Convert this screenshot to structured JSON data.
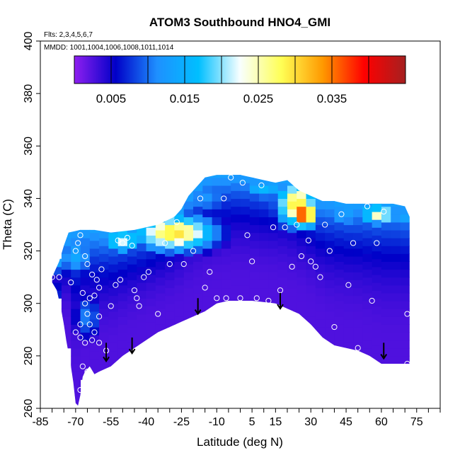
{
  "chart_data": {
    "type": "heatmap",
    "title": "ATOM3 Southbound HNO4_GMI",
    "flights_note": "Flts: 2,3,4,5,6,7",
    "dates_note": "MMDD: 1001,1004,1006,1008,1011,1014",
    "xlabel": "Latitude (deg N)",
    "ylabel": "Theta (C)",
    "xlim": [
      -85,
      85
    ],
    "ylim": [
      260,
      400
    ],
    "x_ticks": [
      -85,
      -70,
      -55,
      -40,
      -25,
      -10,
      5,
      15,
      30,
      45,
      60,
      75
    ],
    "y_ticks": [
      260,
      280,
      300,
      320,
      340,
      360,
      380,
      400
    ],
    "colorbar": {
      "min": 0.0,
      "max": 0.045,
      "tick_values": [
        0.005,
        0.015,
        0.025,
        0.035
      ],
      "tick_labels": [
        "0.005",
        "0.015",
        "0.025",
        "0.035"
      ],
      "divisions": [
        0.005,
        0.01,
        0.015,
        0.02,
        0.025,
        0.03,
        0.035,
        0.04
      ],
      "stops": [
        "#8f1ff0",
        "#0000c8",
        "#1e90ff",
        "#00bfff",
        "#f8ffff",
        "#ffff55",
        "#ff9900",
        "#ff0000",
        "#a52020"
      ]
    },
    "domain_top": [
      [
        -80,
        310
      ],
      [
        -77,
        316
      ],
      [
        -75,
        322
      ],
      [
        -73,
        327
      ],
      [
        -68,
        328
      ],
      [
        -62,
        328
      ],
      [
        -55,
        327
      ],
      [
        -45,
        328
      ],
      [
        -35,
        330
      ],
      [
        -28,
        333
      ],
      [
        -25,
        336
      ],
      [
        -22,
        341
      ],
      [
        -18,
        345
      ],
      [
        -15,
        348
      ],
      [
        -10,
        349
      ],
      [
        -5,
        349
      ],
      [
        0,
        349
      ],
      [
        5,
        348
      ],
      [
        10,
        347
      ],
      [
        15,
        346
      ],
      [
        20,
        347
      ],
      [
        25,
        343
      ],
      [
        30,
        341
      ],
      [
        35,
        339
      ],
      [
        40,
        339
      ],
      [
        45,
        338
      ],
      [
        50,
        338
      ],
      [
        55,
        338
      ],
      [
        60,
        338
      ],
      [
        65,
        338
      ],
      [
        70,
        337
      ],
      [
        72,
        333
      ]
    ],
    "domain_bottom": [
      [
        72,
        277
      ],
      [
        68,
        277
      ],
      [
        60,
        277
      ],
      [
        55,
        280
      ],
      [
        50,
        282
      ],
      [
        45,
        283
      ],
      [
        40,
        284
      ],
      [
        35,
        287
      ],
      [
        30,
        292
      ],
      [
        25,
        296
      ],
      [
        20,
        298
      ],
      [
        15,
        300
      ],
      [
        5,
        301
      ],
      [
        0,
        301
      ],
      [
        -5,
        301
      ],
      [
        -10,
        300
      ],
      [
        -15,
        297
      ],
      [
        -20,
        295
      ],
      [
        -25,
        293
      ],
      [
        -30,
        291
      ],
      [
        -35,
        289
      ],
      [
        -40,
        286
      ],
      [
        -45,
        283
      ],
      [
        -50,
        280
      ],
      [
        -55,
        276
      ],
      [
        -60,
        274
      ],
      [
        -62,
        273
      ],
      [
        -64,
        276
      ],
      [
        -66,
        274
      ],
      [
        -67,
        272
      ],
      [
        -68,
        265
      ],
      [
        -69,
        261
      ],
      [
        -70,
        262
      ],
      [
        -71,
        270
      ],
      [
        -72,
        276
      ],
      [
        -73,
        281
      ],
      [
        -74,
        286
      ],
      [
        -75,
        292
      ],
      [
        -76,
        297
      ],
      [
        -77,
        301
      ],
      [
        -78,
        305
      ],
      [
        -80,
        308
      ]
    ],
    "grid_cell": [
      4,
      3
    ],
    "value_hotspots": [
      {
        "lat": -28,
        "theta": 327,
        "value": 0.03,
        "rlat": 18,
        "rtheta": 7
      },
      {
        "lat": -50,
        "theta": 324,
        "value": 0.022,
        "rlat": 9,
        "rtheta": 5
      },
      {
        "lat": -70,
        "theta": 318,
        "value": 0.014,
        "rlat": 9,
        "rtheta": 8
      },
      {
        "lat": -15,
        "theta": 340,
        "value": 0.012,
        "rlat": 12,
        "rtheta": 6
      },
      {
        "lat": 27,
        "theta": 334,
        "value": 0.04,
        "rlat": 6,
        "rtheta": 5
      },
      {
        "lat": 24,
        "theta": 338,
        "value": 0.03,
        "rlat": 9,
        "rtheta": 9
      },
      {
        "lat": 10,
        "theta": 344,
        "value": 0.016,
        "rlat": 12,
        "rtheta": 5
      },
      {
        "lat": 44,
        "theta": 334,
        "value": 0.014,
        "rlat": 7,
        "rtheta": 6
      },
      {
        "lat": 59,
        "theta": 334,
        "value": 0.025,
        "rlat": 9,
        "rtheta": 4
      },
      {
        "lat": 69,
        "theta": 333,
        "value": 0.014,
        "rlat": 5,
        "rtheta": 6
      },
      {
        "lat": -80,
        "theta": 300,
        "value": 0.008,
        "rlat": 6,
        "rtheta": 14
      },
      {
        "lat": -65,
        "theta": 295,
        "value": 0.011,
        "rlat": 6,
        "rtheta": 9
      }
    ],
    "measurements": [
      {
        "lat": -80,
        "theta": 310
      },
      {
        "lat": -77,
        "theta": 310
      },
      {
        "lat": -72,
        "theta": 308
      },
      {
        "lat": -70,
        "theta": 320
      },
      {
        "lat": -69,
        "theta": 323
      },
      {
        "lat": -68,
        "theta": 326
      },
      {
        "lat": -66,
        "theta": 318
      },
      {
        "lat": -65,
        "theta": 315
      },
      {
        "lat": -63,
        "theta": 311
      },
      {
        "lat": -67,
        "theta": 304
      },
      {
        "lat": -66,
        "theta": 300
      },
      {
        "lat": -65,
        "theta": 296
      },
      {
        "lat": -64,
        "theta": 302
      },
      {
        "lat": -62,
        "theta": 303
      },
      {
        "lat": -61,
        "theta": 309
      },
      {
        "lat": -60,
        "theta": 306
      },
      {
        "lat": -59,
        "theta": 313
      },
      {
        "lat": -60,
        "theta": 295
      },
      {
        "lat": -62,
        "theta": 289
      },
      {
        "lat": -64,
        "theta": 292
      },
      {
        "lat": -63,
        "theta": 286
      },
      {
        "lat": -60,
        "theta": 285
      },
      {
        "lat": -66,
        "theta": 285
      },
      {
        "lat": -68,
        "theta": 287
      },
      {
        "lat": -70,
        "theta": 289
      },
      {
        "lat": -68,
        "theta": 292
      },
      {
        "lat": -67,
        "theta": 276
      },
      {
        "lat": -65,
        "theta": 274
      },
      {
        "lat": -68,
        "theta": 267
      },
      {
        "lat": -57,
        "theta": 282
      },
      {
        "lat": -55,
        "theta": 299
      },
      {
        "lat": -53,
        "theta": 307
      },
      {
        "lat": -51,
        "theta": 309
      },
      {
        "lat": -52,
        "theta": 324
      },
      {
        "lat": -50,
        "theta": 323
      },
      {
        "lat": -48,
        "theta": 325
      },
      {
        "lat": -46,
        "theta": 322
      },
      {
        "lat": -45,
        "theta": 305
      },
      {
        "lat": -44,
        "theta": 302
      },
      {
        "lat": -43,
        "theta": 299
      },
      {
        "lat": -41,
        "theta": 310
      },
      {
        "lat": -39,
        "theta": 312
      },
      {
        "lat": -35,
        "theta": 296
      },
      {
        "lat": -32,
        "theta": 323
      },
      {
        "lat": -30,
        "theta": 315
      },
      {
        "lat": -27,
        "theta": 331
      },
      {
        "lat": -24,
        "theta": 315
      },
      {
        "lat": -20,
        "theta": 320
      },
      {
        "lat": -17,
        "theta": 340
      },
      {
        "lat": -15,
        "theta": 306
      },
      {
        "lat": -13,
        "theta": 312
      },
      {
        "lat": -10,
        "theta": 302
      },
      {
        "lat": -7,
        "theta": 340
      },
      {
        "lat": -6,
        "theta": 302
      },
      {
        "lat": -4,
        "theta": 348
      },
      {
        "lat": 0,
        "theta": 302
      },
      {
        "lat": 1,
        "theta": 346
      },
      {
        "lat": 3,
        "theta": 326
      },
      {
        "lat": 5,
        "theta": 316
      },
      {
        "lat": 7,
        "theta": 302
      },
      {
        "lat": 9,
        "theta": 345
      },
      {
        "lat": 12,
        "theta": 301
      },
      {
        "lat": 14,
        "theta": 329
      },
      {
        "lat": 17,
        "theta": 305
      },
      {
        "lat": 19,
        "theta": 329
      },
      {
        "lat": 22,
        "theta": 314
      },
      {
        "lat": 24,
        "theta": 330
      },
      {
        "lat": 26,
        "theta": 318
      },
      {
        "lat": 29,
        "theta": 324
      },
      {
        "lat": 30,
        "theta": 316
      },
      {
        "lat": 32,
        "theta": 314
      },
      {
        "lat": 34,
        "theta": 310
      },
      {
        "lat": 36,
        "theta": 330
      },
      {
        "lat": 38,
        "theta": 320
      },
      {
        "lat": 40,
        "theta": 291
      },
      {
        "lat": 43,
        "theta": 334
      },
      {
        "lat": 46,
        "theta": 307
      },
      {
        "lat": 48,
        "theta": 323
      },
      {
        "lat": 50,
        "theta": 283
      },
      {
        "lat": 54,
        "theta": 337
      },
      {
        "lat": 56,
        "theta": 301
      },
      {
        "lat": 58,
        "theta": 323
      },
      {
        "lat": 61,
        "theta": 335
      },
      {
        "lat": 71,
        "theta": 296
      },
      {
        "lat": 71,
        "theta": 277
      }
    ],
    "arrows": [
      {
        "lat": -57,
        "theta_top": 285,
        "theta_bottom": 278
      },
      {
        "lat": -46,
        "theta_top": 287,
        "theta_bottom": 281
      },
      {
        "lat": -18,
        "theta_top": 302,
        "theta_bottom": 296
      },
      {
        "lat": 17,
        "theta_top": 304,
        "theta_bottom": 298
      },
      {
        "lat": 61,
        "theta_top": 285,
        "theta_bottom": 279
      }
    ]
  }
}
